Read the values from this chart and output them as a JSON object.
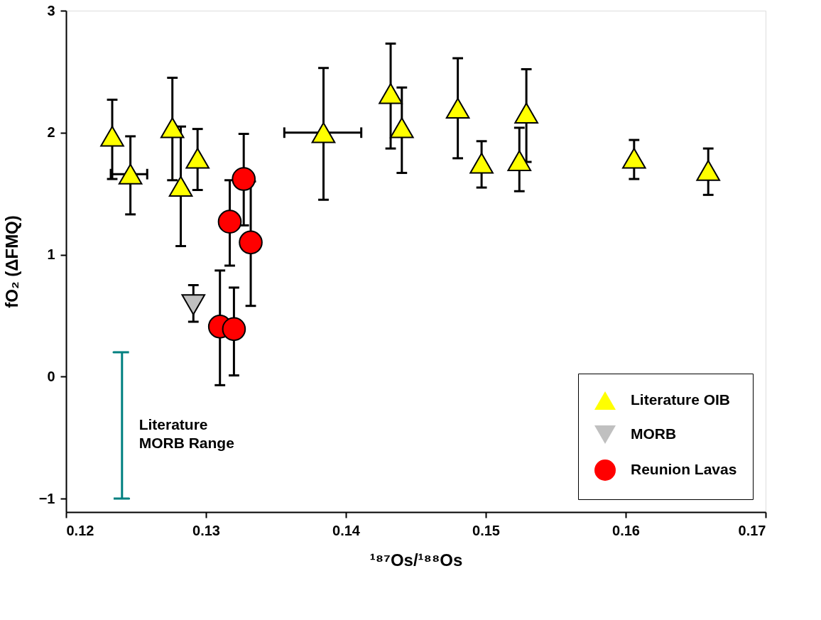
{
  "chart_data": {
    "type": "scatter",
    "xlabel": "¹⁸⁷Os/¹⁸⁸Os",
    "ylabel": "fO₂ (ΔFMQ)",
    "xlim": [
      0.12,
      0.17
    ],
    "xticks": [
      0.12,
      0.13,
      0.14,
      0.15,
      0.16,
      0.17
    ],
    "ylim": [
      -1.11,
      3
    ],
    "yticks": [
      -1,
      0,
      1,
      2,
      3
    ],
    "grid": false,
    "legend": "bottom right",
    "series": [
      {
        "name": "Literature OIB",
        "color": "#ffff00",
        "marker": "triangle",
        "x": [
          0.1233,
          0.1246,
          0.1276,
          0.1282,
          0.1294,
          0.1384,
          0.1432,
          0.144,
          0.148,
          0.1497,
          0.1524,
          0.1529,
          0.1606,
          0.1659
        ],
        "values": [
          1.97,
          1.66,
          2.04,
          1.56,
          1.79,
          2.0,
          2.32,
          2.04,
          2.2,
          1.75,
          1.77,
          2.16,
          1.79,
          1.69
        ],
        "errors": [
          [
            1.62,
            2.27
          ],
          [
            1.33,
            1.97
          ],
          [
            1.61,
            2.45
          ],
          [
            1.07,
            2.05
          ],
          [
            1.53,
            2.03
          ],
          [
            1.45,
            2.53
          ],
          [
            1.87,
            2.73
          ],
          [
            1.67,
            2.37
          ],
          [
            1.79,
            2.61
          ],
          [
            1.55,
            1.93
          ],
          [
            1.52,
            2.04
          ],
          [
            1.76,
            2.52
          ],
          [
            1.62,
            1.94
          ],
          [
            1.49,
            1.87
          ]
        ],
        "xerrors": [
          null,
          [
            0.1232,
            0.1258
          ],
          null,
          null,
          null,
          [
            0.1356,
            0.1411
          ],
          null,
          null,
          null,
          null,
          null,
          null,
          null,
          null
        ]
      },
      {
        "name": "MORB",
        "color": "#c0c0c0",
        "marker": "triangle-down",
        "x": [
          0.1291
        ],
        "values": [
          0.59
        ],
        "errors": [
          [
            0.45,
            0.75
          ]
        ]
      },
      {
        "name": "Reunion Lavas",
        "color": "#ff0000",
        "marker": "circle",
        "x": [
          0.131,
          0.132,
          0.1317,
          0.1327,
          0.1332
        ],
        "values": [
          0.41,
          0.39,
          1.27,
          1.62,
          1.1
        ],
        "errors": [
          [
            -0.07,
            0.87
          ],
          [
            0.01,
            0.73
          ],
          [
            0.91,
            1.61
          ],
          [
            1.24,
            1.99
          ],
          [
            0.58,
            1.6
          ]
        ]
      },
      {
        "name": "Literature MORB Range",
        "type": "line",
        "color": "#008080",
        "marker": "none",
        "x": [
          0.1234,
          0.1245,
          0.124,
          0.124,
          0.1234,
          0.1245
        ],
        "values": [
          -1,
          -1,
          -1,
          0.2,
          0.2,
          0.2
        ]
      }
    ]
  }
}
